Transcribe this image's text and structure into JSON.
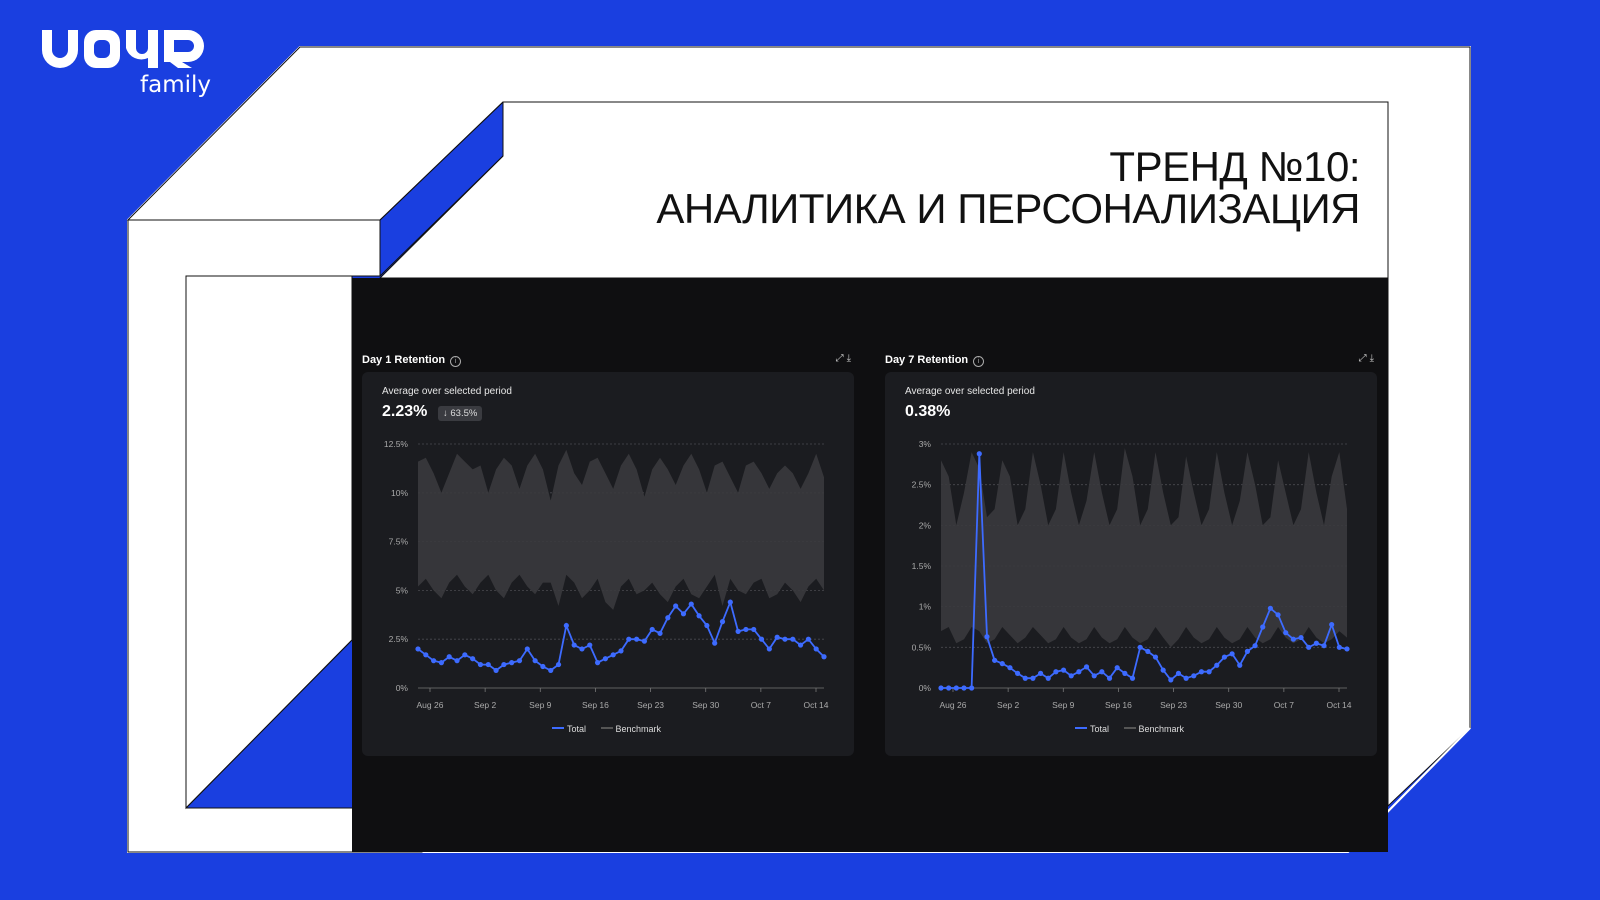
{
  "colors": {
    "background": "#1a3fe0",
    "frame": "#ffffff",
    "dashboard_bg": "#0f0f11",
    "card_bg": "#1b1c20",
    "total_line": "#3d6bff",
    "benchmark_fill": "#3a3a3d"
  },
  "logo": {
    "mark": "УОЧЯ",
    "sub": "family"
  },
  "headline": {
    "line1": "ТРЕНД №10:",
    "line2": "АНАЛИТИКА И ПЕРСОНАЛИЗАЦИЯ"
  },
  "panels": [
    {
      "title": "Day 1 Retention",
      "avg_label": "Average over selected period",
      "avg_value": "2.23%",
      "badge": "↓ 63.5%",
      "icons": [
        "expand-icon",
        "download-icon"
      ],
      "legend": [
        "Total",
        "Benchmark"
      ]
    },
    {
      "title": "Day 7 Retention",
      "avg_label": "Average over selected period",
      "avg_value": "0.38%",
      "badge": "",
      "icons": [
        "expand-icon",
        "download-icon"
      ],
      "legend": [
        "Total",
        "Benchmark"
      ]
    }
  ],
  "chart_data": [
    {
      "type": "line",
      "title": "Day 1 Retention",
      "x_ticks": [
        "Aug 26",
        "Sep 2",
        "Sep 9",
        "Sep 16",
        "Sep 23",
        "Sep 30",
        "Oct 7",
        "Oct 14"
      ],
      "y_ticks": [
        "0%",
        "2.5%",
        "5%",
        "7.5%",
        "10%",
        "12.5%"
      ],
      "ylim": [
        0,
        12.5
      ],
      "grid": true,
      "legend_position": "bottom",
      "series": [
        {
          "name": "Total",
          "values": [
            2.0,
            1.7,
            1.4,
            1.3,
            1.6,
            1.4,
            1.7,
            1.5,
            1.2,
            1.2,
            0.9,
            1.2,
            1.3,
            1.4,
            2.0,
            1.4,
            1.1,
            0.9,
            1.2,
            3.2,
            2.2,
            2.0,
            2.2,
            1.3,
            1.5,
            1.7,
            1.9,
            2.5,
            2.5,
            2.4,
            3.0,
            2.8,
            3.6,
            4.2,
            3.8,
            4.3,
            3.7,
            3.2,
            2.3,
            3.4,
            4.4,
            2.9,
            3.0,
            3.0,
            2.5,
            2.0,
            2.6,
            2.5,
            2.5,
            2.2,
            2.5,
            2.0,
            1.6
          ]
        },
        {
          "name": "Benchmark",
          "upper": [
            11.6,
            11.8,
            11.0,
            10.0,
            11.0,
            12.0,
            11.6,
            11.2,
            11.4,
            10.0,
            11.2,
            11.8,
            11.4,
            10.2,
            11.4,
            12.0,
            11.2,
            9.6,
            11.4,
            12.2,
            11.0,
            10.4,
            11.6,
            11.8,
            11.0,
            10.2,
            11.4,
            12.0,
            11.2,
            9.8,
            11.2,
            11.8,
            11.2,
            10.4,
            11.4,
            12.0,
            11.2,
            10.0,
            11.4,
            11.6,
            10.8,
            10.0,
            11.4,
            11.6,
            11.0,
            10.2,
            11.0,
            11.4,
            11.0,
            10.2,
            11.0,
            12.0,
            10.8
          ],
          "lower": [
            5.2,
            5.6,
            5.0,
            4.6,
            5.4,
            5.8,
            5.2,
            4.8,
            5.4,
            5.8,
            5.0,
            4.6,
            5.4,
            5.8,
            5.2,
            4.8,
            5.4,
            5.4,
            4.2,
            5.8,
            5.4,
            4.6,
            5.0,
            5.6,
            4.4,
            4.0,
            5.2,
            5.6,
            4.8,
            5.0,
            5.4,
            4.8,
            4.4,
            5.2,
            5.6,
            4.8,
            4.6,
            5.2,
            5.8,
            4.2,
            5.6,
            5.0,
            4.8,
            5.4,
            5.6,
            4.6,
            4.8,
            5.4,
            5.0,
            4.4,
            5.2,
            5.6,
            5.0
          ]
        }
      ]
    },
    {
      "type": "line",
      "title": "Day 7 Retention",
      "x_ticks": [
        "Aug 26",
        "Sep 2",
        "Sep 9",
        "Sep 16",
        "Sep 23",
        "Sep 30",
        "Oct 7",
        "Oct 14"
      ],
      "y_ticks": [
        "0%",
        "0.5%",
        "1%",
        "1.5%",
        "2%",
        "2.5%",
        "3%"
      ],
      "ylim": [
        0,
        3
      ],
      "grid": true,
      "legend_position": "bottom",
      "series": [
        {
          "name": "Total",
          "values": [
            0,
            0,
            0,
            0,
            0,
            2.88,
            0.63,
            0.34,
            0.3,
            0.25,
            0.18,
            0.12,
            0.12,
            0.18,
            0.12,
            0.2,
            0.22,
            0.15,
            0.2,
            0.26,
            0.15,
            0.2,
            0.12,
            0.25,
            0.18,
            0.12,
            0.5,
            0.45,
            0.38,
            0.22,
            0.1,
            0.18,
            0.12,
            0.15,
            0.2,
            0.2,
            0.28,
            0.38,
            0.42,
            0.28,
            0.45,
            0.52,
            0.75,
            0.98,
            0.9,
            0.68,
            0.6,
            0.62,
            0.5,
            0.55,
            0.52,
            0.78,
            0.5,
            0.48
          ]
        },
        {
          "name": "Benchmark",
          "upper": [
            2.8,
            2.6,
            2.0,
            2.4,
            2.9,
            2.7,
            2.1,
            2.2,
            2.8,
            2.6,
            2.0,
            2.2,
            2.9,
            2.5,
            2.0,
            2.2,
            2.9,
            2.4,
            2.0,
            2.3,
            2.9,
            2.4,
            2.0,
            2.2,
            2.95,
            2.6,
            2.0,
            2.2,
            2.9,
            2.4,
            2.0,
            2.1,
            2.85,
            2.4,
            2.0,
            2.2,
            2.9,
            2.4,
            2.0,
            2.3,
            2.9,
            2.5,
            2.0,
            2.1,
            2.8,
            2.4,
            2.0,
            2.2,
            2.9,
            2.4,
            2.0,
            2.6,
            2.9,
            2.2
          ],
          "lower": [
            0.7,
            0.75,
            0.55,
            0.6,
            0.75,
            0.7,
            0.55,
            0.6,
            0.75,
            0.65,
            0.55,
            0.62,
            0.75,
            0.65,
            0.55,
            0.6,
            0.75,
            0.62,
            0.55,
            0.6,
            0.75,
            0.62,
            0.55,
            0.6,
            0.75,
            0.62,
            0.55,
            0.6,
            0.75,
            0.62,
            0.5,
            0.6,
            0.75,
            0.62,
            0.55,
            0.6,
            0.75,
            0.62,
            0.55,
            0.6,
            0.75,
            0.62,
            0.55,
            0.6,
            0.75,
            0.62,
            0.55,
            0.6,
            0.75,
            0.62,
            0.55,
            0.6,
            0.7,
            0.62
          ]
        }
      ]
    }
  ]
}
